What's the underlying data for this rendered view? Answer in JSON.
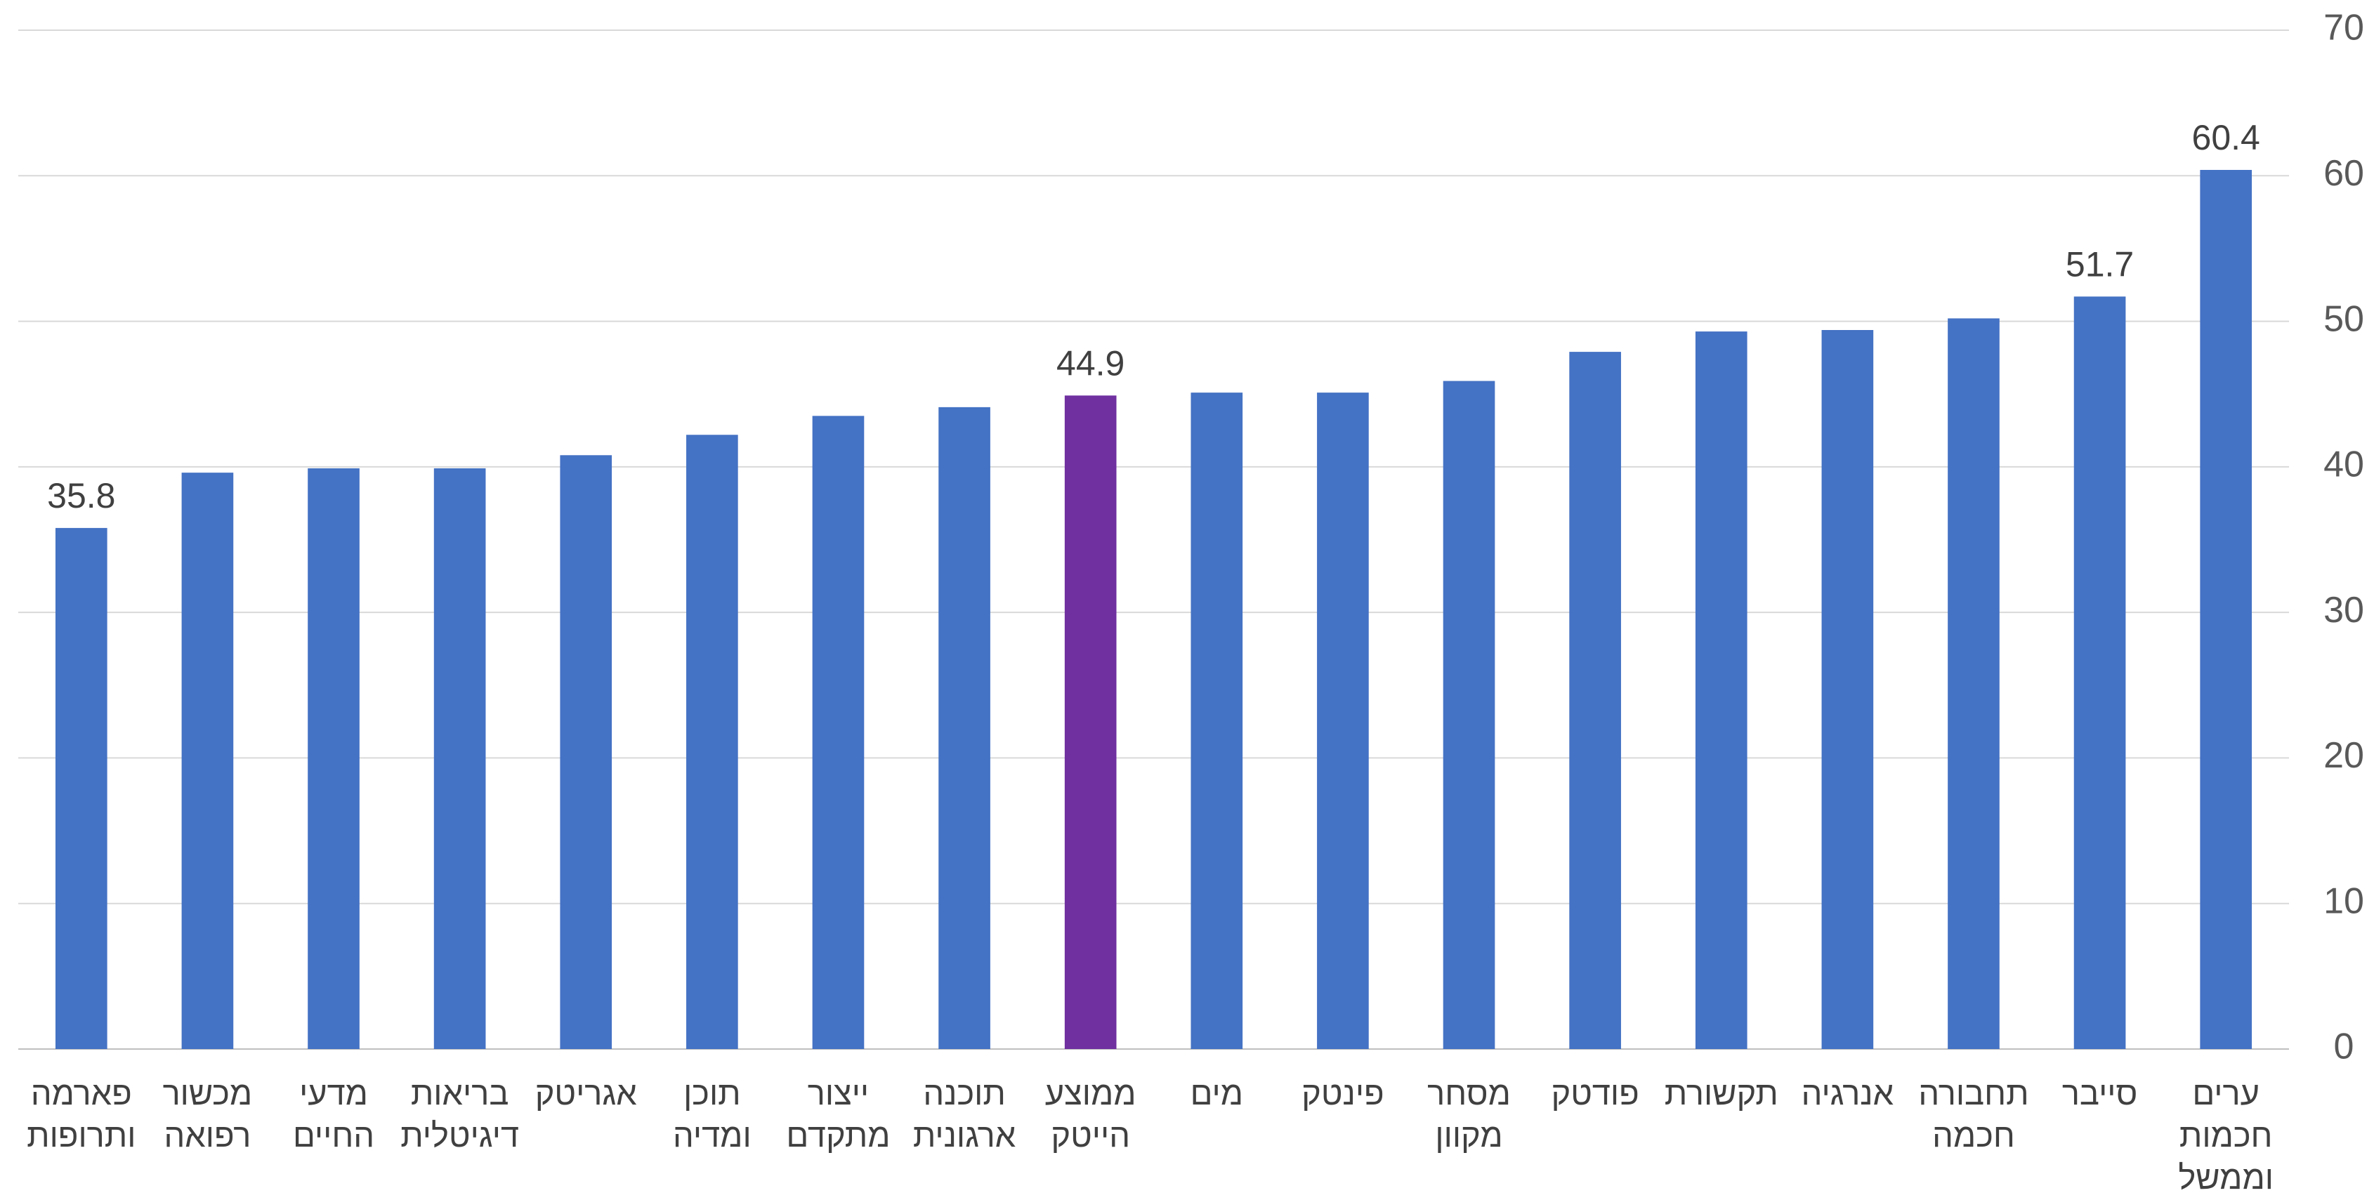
{
  "chart_data": {
    "type": "bar",
    "categories": [
      "פארמה ותרופות",
      "מכשור רפואה",
      "מדעי החיים",
      "בריאות דיגיטלית",
      "אגריטק",
      "תוכן ומדיה",
      "ייצור מתקדם",
      "תוכנה ארגונית",
      "ממוצע הייטק",
      "מים",
      "פינטק",
      "מסחר מקוון",
      "פודטק",
      "תקשורת",
      "אנרגיה",
      "תחבורה חכמה",
      "סייבר",
      "ערים חכמות וממשל"
    ],
    "values": [
      35.8,
      39.6,
      39.9,
      39.9,
      40.8,
      42.2,
      43.5,
      44.1,
      44.9,
      45.1,
      45.1,
      45.9,
      47.9,
      49.3,
      49.4,
      50.2,
      51.7,
      60.4
    ],
    "value_labels": [
      "35.8",
      null,
      null,
      null,
      null,
      null,
      null,
      null,
      "44.9",
      null,
      null,
      null,
      null,
      null,
      null,
      null,
      "51.7",
      "60.4"
    ],
    "colors": [
      "#4472c4",
      "#4472c4",
      "#4472c4",
      "#4472c4",
      "#4472c4",
      "#4472c4",
      "#4472c4",
      "#4472c4",
      "#7030a0",
      "#4472c4",
      "#4472c4",
      "#4472c4",
      "#4472c4",
      "#4472c4",
      "#4472c4",
      "#4472c4",
      "#4472c4",
      "#4472c4"
    ],
    "ylim": [
      0,
      70
    ],
    "yticks": [
      0,
      10,
      20,
      30,
      40,
      50,
      60,
      70
    ],
    "grid": true,
    "y_axis_side": "right"
  }
}
